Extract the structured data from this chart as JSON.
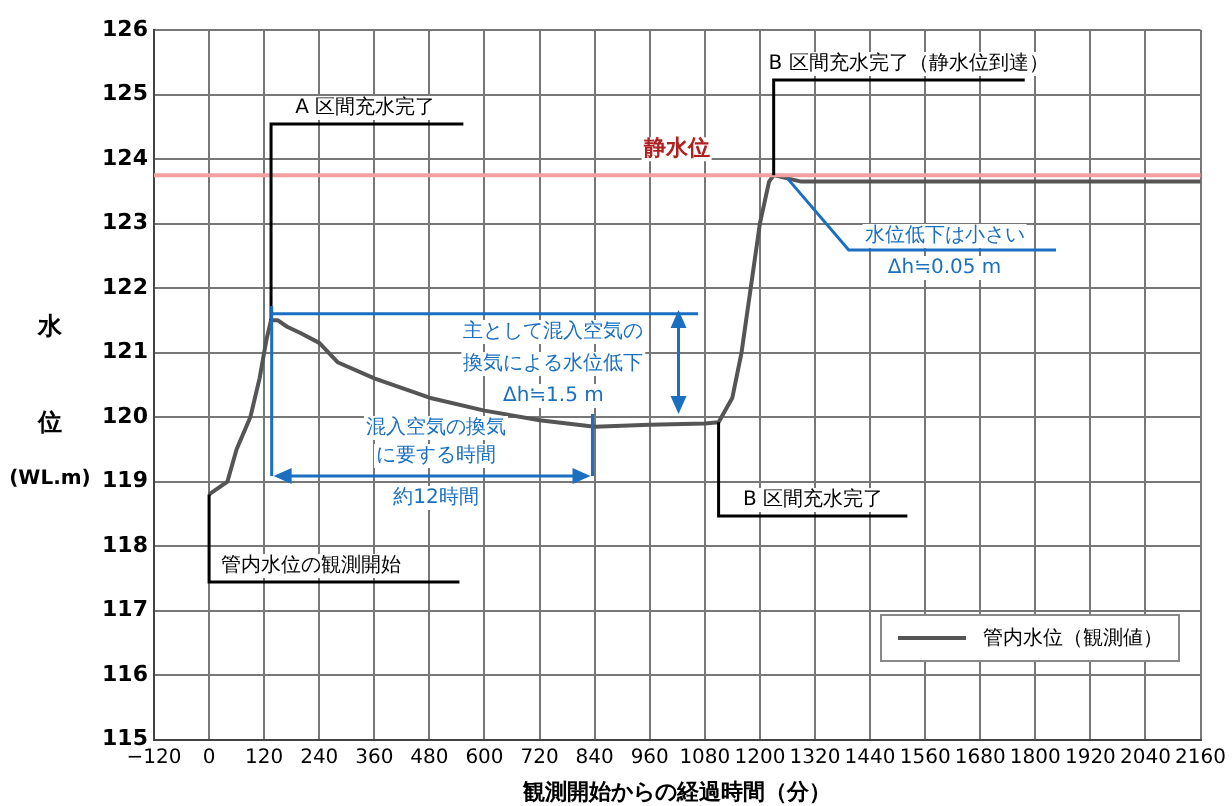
{
  "chart_data": {
    "type": "line",
    "xlabel": "観測開始からの経過時間（分）",
    "ylabel": "水位(WL.m)",
    "x": [
      0,
      40,
      60,
      90,
      110,
      125,
      135,
      150,
      170,
      200,
      240,
      280,
      360,
      480,
      600,
      720,
      840,
      960,
      1080,
      1110,
      1140,
      1160,
      1180,
      1200,
      1220,
      1230,
      1260,
      1290,
      1500,
      1800,
      2160
    ],
    "series": [
      {
        "name": "管内水位（観測値）",
        "color": "#555555",
        "values": [
          118.8,
          119.0,
          119.5,
          120.0,
          120.6,
          121.2,
          121.5,
          121.5,
          121.4,
          121.3,
          121.15,
          120.85,
          120.6,
          120.3,
          120.1,
          119.95,
          119.85,
          119.88,
          119.9,
          119.92,
          120.3,
          121.0,
          122.0,
          123.0,
          123.65,
          123.75,
          123.7,
          123.65,
          123.65,
          123.65,
          123.65
        ]
      }
    ],
    "xlim": [
      -120,
      2160
    ],
    "xticks": [
      -120,
      0,
      120,
      240,
      360,
      480,
      600,
      720,
      840,
      960,
      1080,
      1200,
      1320,
      1440,
      1560,
      1680,
      1800,
      1920,
      2040,
      2160
    ],
    "ylim": [
      115,
      126
    ],
    "yticks": [
      115,
      116,
      117,
      118,
      119,
      120,
      121,
      122,
      123,
      124,
      125,
      126
    ],
    "grid": true,
    "legend": "bottom right",
    "marker": "none",
    "line_style": "solid",
    "ref_lines": [
      {
        "axis": "y",
        "value": 123.75,
        "label": "静水位",
        "color": "#f2a0a0"
      },
      {
        "axis": "y",
        "value": 121.6,
        "color": "#1a6fc0"
      }
    ],
    "annotations": [
      {
        "text": "A 区間充水完了",
        "x": 135,
        "y": 121.5
      },
      {
        "text": "B 区間充水完了（静水位到達）",
        "x": 1230,
        "y": 123.75
      },
      {
        "text": "B 区間充水完了",
        "x": 1110,
        "y": 119.92
      },
      {
        "text": "管内水位の観測開始",
        "x": 0,
        "y": 118.8
      },
      "主として混入空気の換気による水位低下Δh≒1.5 m",
      "混入空気の換気に要する時間",
      "約12時間",
      {
        "text": "水位低下は小さいΔh≒0.05 m",
        "x": 1260,
        "y": 123.7
      }
    ]
  }
}
